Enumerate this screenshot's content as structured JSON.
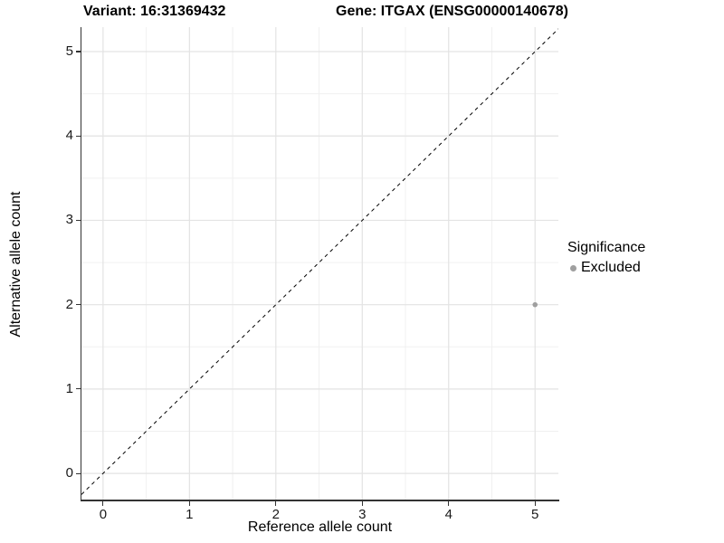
{
  "header": {
    "variant_title": "Variant: 16:31369432",
    "gene_title": "Gene: ITGAX (ENSG00000140678)"
  },
  "legend": {
    "title": "Significance",
    "position": "right",
    "items": [
      {
        "label": "Excluded",
        "color": "#9f9f9f"
      }
    ]
  },
  "chart_data": {
    "type": "scatter",
    "title": "Variant: 16:31369432  /  Gene: ITGAX (ENSG00000140678)",
    "xlabel": "Reference allele count",
    "ylabel": "Alternative allele count",
    "xlim": [
      -0.25,
      5.27
    ],
    "ylim": [
      -0.31,
      5.29
    ],
    "xticks": [
      0,
      1,
      2,
      3,
      4,
      5
    ],
    "yticks": [
      0,
      1,
      2,
      3,
      4,
      5
    ],
    "grid": {
      "major": true,
      "minor": true,
      "major_color": "#e3e3e3",
      "minor_color": "#f0f0f0"
    },
    "legend_position": "right",
    "series": [
      {
        "name": "Excluded",
        "color": "#9f9f9f",
        "point_radius": 2.8,
        "points": [
          {
            "x": 5,
            "y": 2
          }
        ]
      }
    ],
    "reference_line": {
      "kind": "identity y=x",
      "style": "dashed",
      "dash": [
        4,
        4
      ],
      "color": "#000000"
    },
    "axis_color": "#333333",
    "background": "#ffffff"
  }
}
